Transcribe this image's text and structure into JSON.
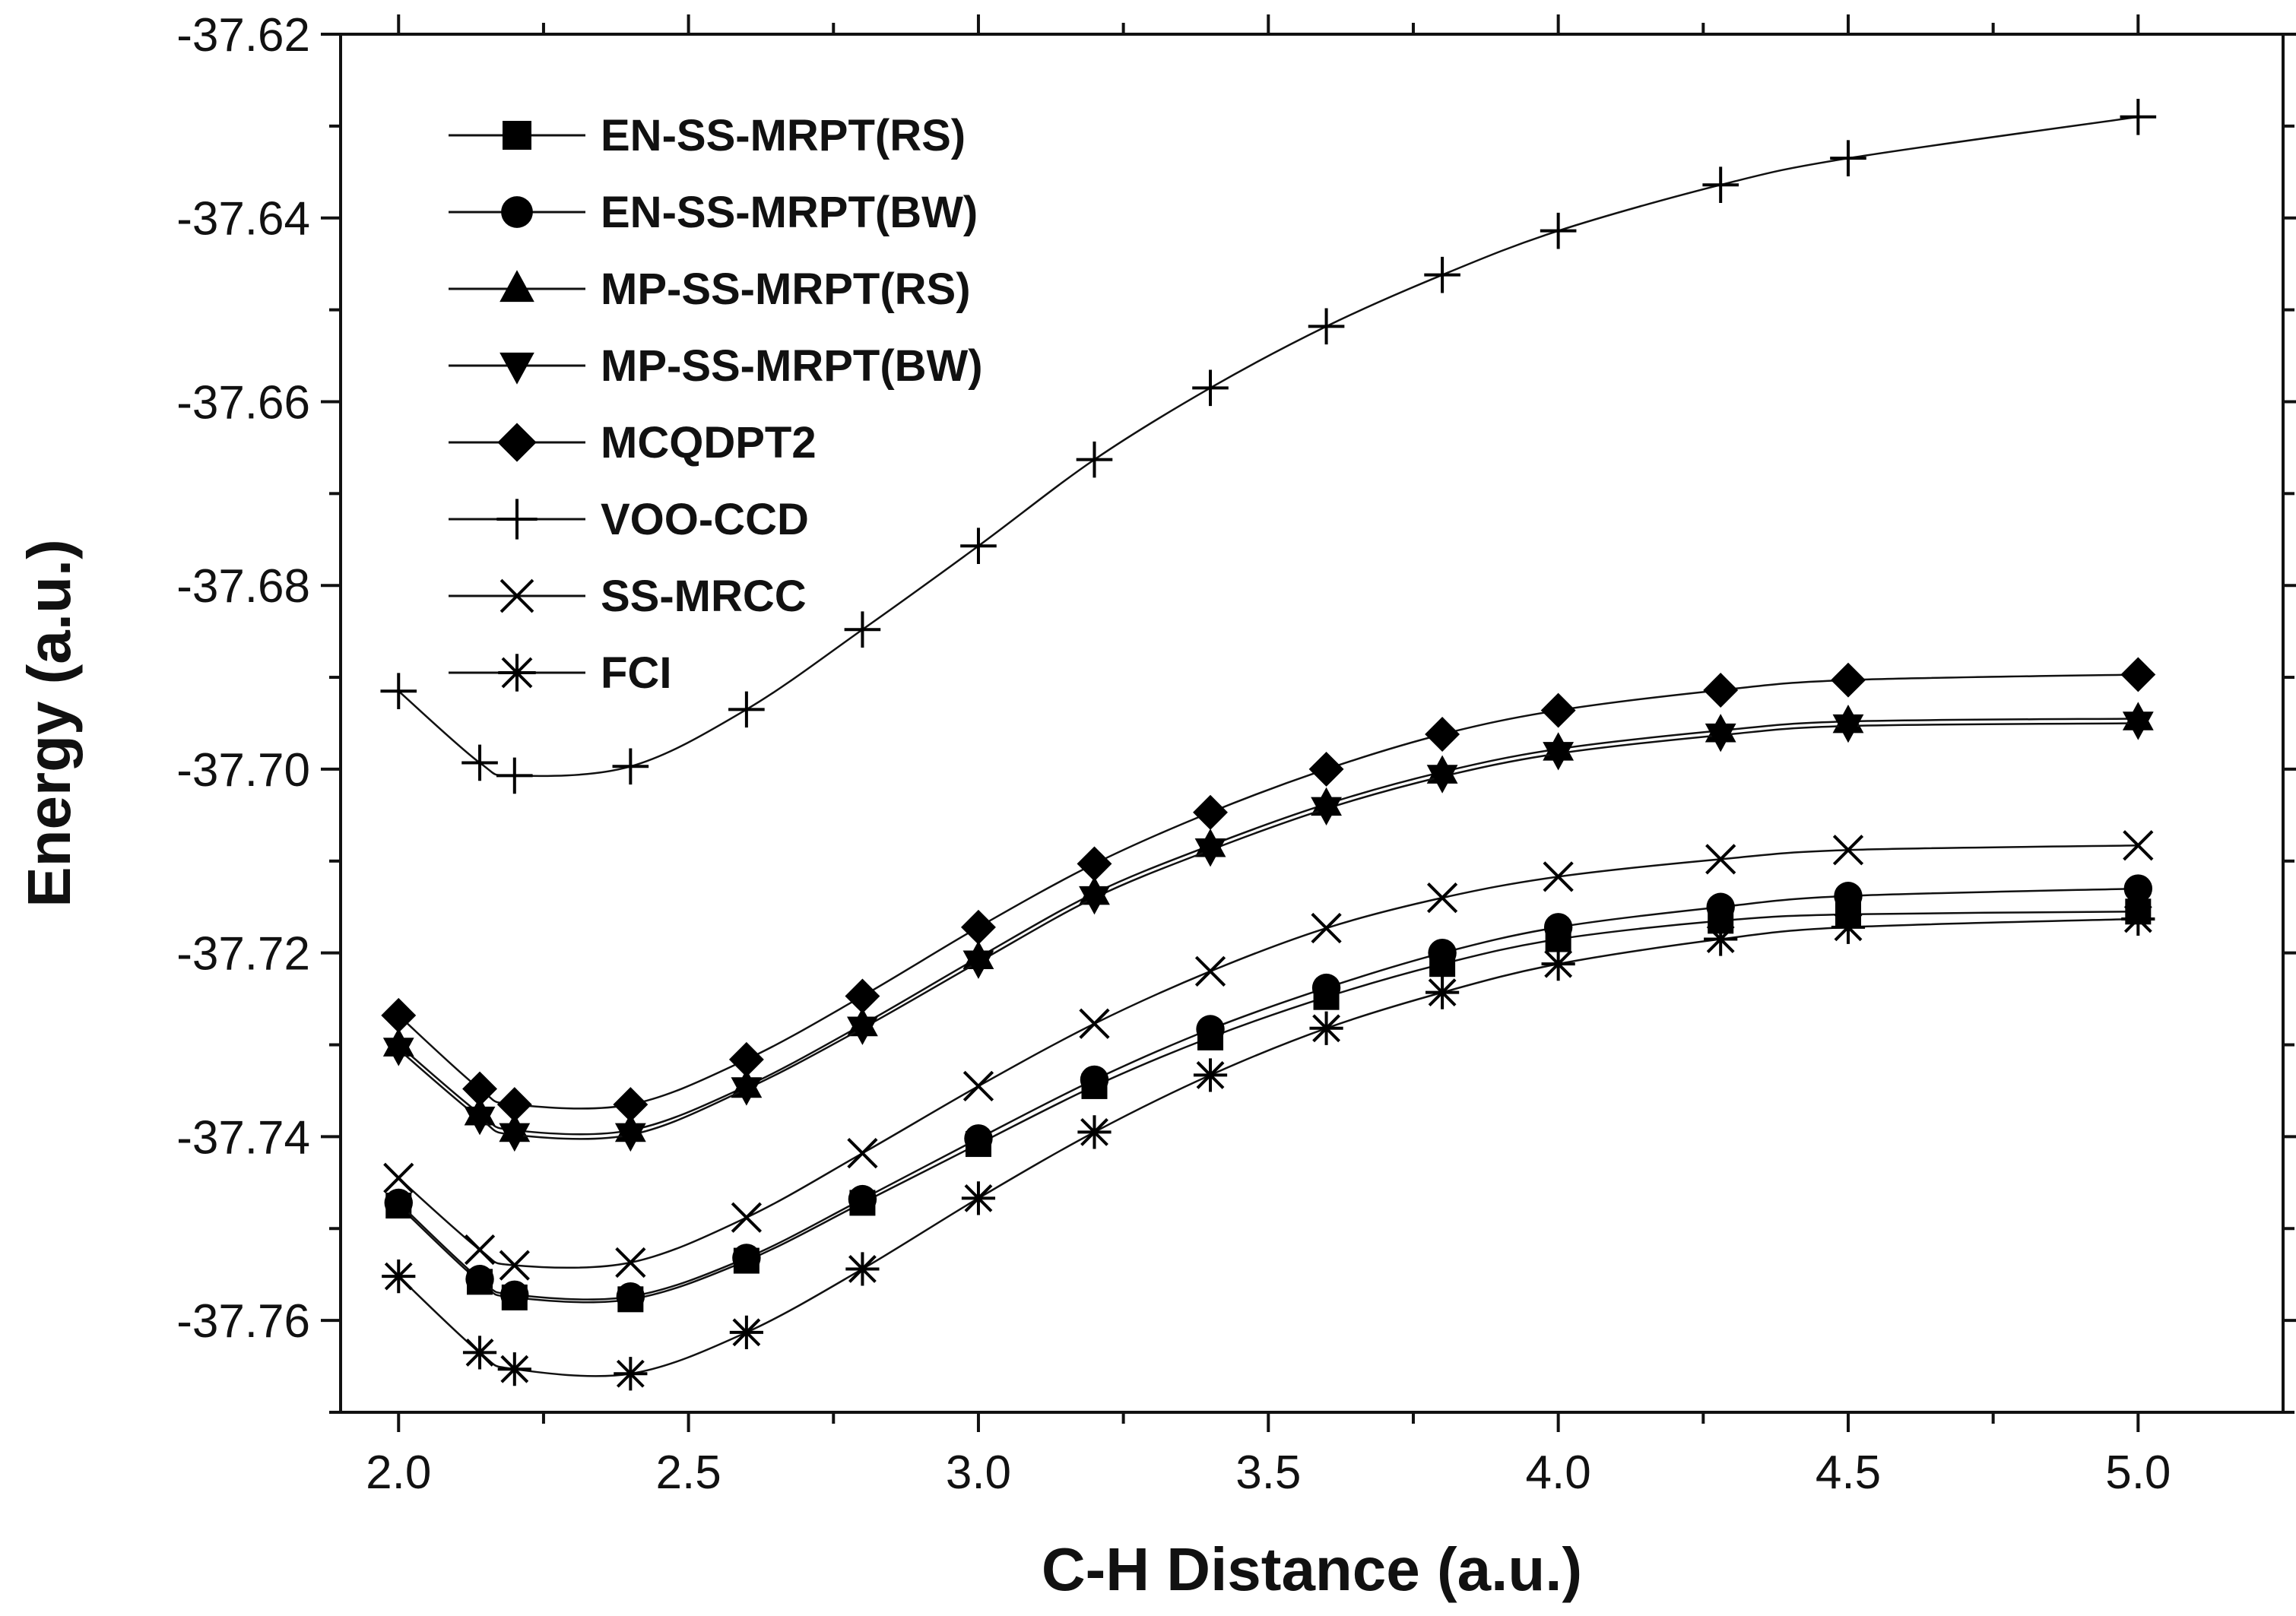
{
  "chart_data": {
    "type": "line",
    "title": "",
    "xlabel": "C-H Distance (a.u.)",
    "ylabel": "Energy (a.u.)",
    "xlim": [
      1.9,
      5.25
    ],
    "ylim": [
      -37.77,
      -37.62
    ],
    "x": [
      2.0,
      2.14,
      2.2,
      2.4,
      2.6,
      2.8,
      3.0,
      3.2,
      3.4,
      3.6,
      3.8,
      4.0,
      4.28,
      4.5,
      5.0
    ],
    "x_ticks": [
      "2.0",
      "2.5",
      "3.0",
      "3.5",
      "4.0",
      "4.5",
      "5.0"
    ],
    "y_ticks": [
      "-37.62",
      "-37.64",
      "-37.66",
      "-37.68",
      "-37.70",
      "-37.72",
      "-37.74",
      "-37.76"
    ],
    "legend_position": "top-left",
    "series": [
      {
        "name": "EN-SS-MRPT(RS)",
        "marker": "square",
        "values": [
          -37.7475,
          -37.7558,
          -37.7575,
          -37.7577,
          -37.7535,
          -37.7472,
          -37.7408,
          -37.7345,
          -37.7292,
          -37.7248,
          -37.7212,
          -37.7185,
          -37.7165,
          -37.7158,
          -37.7155
        ]
      },
      {
        "name": "EN-SS-MRPT(BW)",
        "marker": "circle",
        "values": [
          -37.7472,
          -37.7555,
          -37.7572,
          -37.7574,
          -37.7532,
          -37.7468,
          -37.7402,
          -37.7338,
          -37.7283,
          -37.7238,
          -37.72,
          -37.7172,
          -37.715,
          -37.7138,
          -37.713
        ]
      },
      {
        "name": "MP-SS-MRPT(RS)",
        "marker": "triangle-up",
        "values": [
          -37.73,
          -37.7375,
          -37.7393,
          -37.7393,
          -37.7345,
          -37.7278,
          -37.7205,
          -37.7135,
          -37.7083,
          -37.7038,
          -37.7003,
          -37.6978,
          -37.6958,
          -37.6948,
          -37.6945
        ]
      },
      {
        "name": "MP-SS-MRPT(BW)",
        "marker": "triangle-down",
        "values": [
          -37.7305,
          -37.738,
          -37.7398,
          -37.7398,
          -37.7348,
          -37.7282,
          -37.721,
          -37.714,
          -37.7088,
          -37.7043,
          -37.7008,
          -37.6983,
          -37.6963,
          -37.6953,
          -37.695
        ]
      },
      {
        "name": "MCQDPT2",
        "marker": "diamond",
        "values": [
          -37.7268,
          -37.7348,
          -37.7365,
          -37.7365,
          -37.7316,
          -37.7247,
          -37.7172,
          -37.7103,
          -37.7047,
          -37.7,
          -37.6962,
          -37.6936,
          -37.6914,
          -37.6903,
          -37.6897
        ]
      },
      {
        "name": "VOO-CCD",
        "marker": "plus",
        "values": [
          -37.6915,
          -37.6993,
          -37.7007,
          -37.6997,
          -37.6935,
          -37.6848,
          -37.6757,
          -37.6663,
          -37.6585,
          -37.6518,
          -37.6462,
          -37.6414,
          -37.6364,
          -37.6335,
          -37.629
        ]
      },
      {
        "name": "SS-MRCC",
        "marker": "cross",
        "values": [
          -37.7445,
          -37.7523,
          -37.754,
          -37.7537,
          -37.7488,
          -37.7418,
          -37.7345,
          -37.7277,
          -37.722,
          -37.7173,
          -37.714,
          -37.7117,
          -37.7098,
          -37.7088,
          -37.7083
        ]
      },
      {
        "name": "FCI",
        "marker": "star",
        "values": [
          -37.7552,
          -37.7635,
          -37.7653,
          -37.7658,
          -37.7613,
          -37.7544,
          -37.7467,
          -37.7395,
          -37.7333,
          -37.7282,
          -37.7243,
          -37.7212,
          -37.7185,
          -37.7172,
          -37.7163
        ]
      }
    ]
  }
}
